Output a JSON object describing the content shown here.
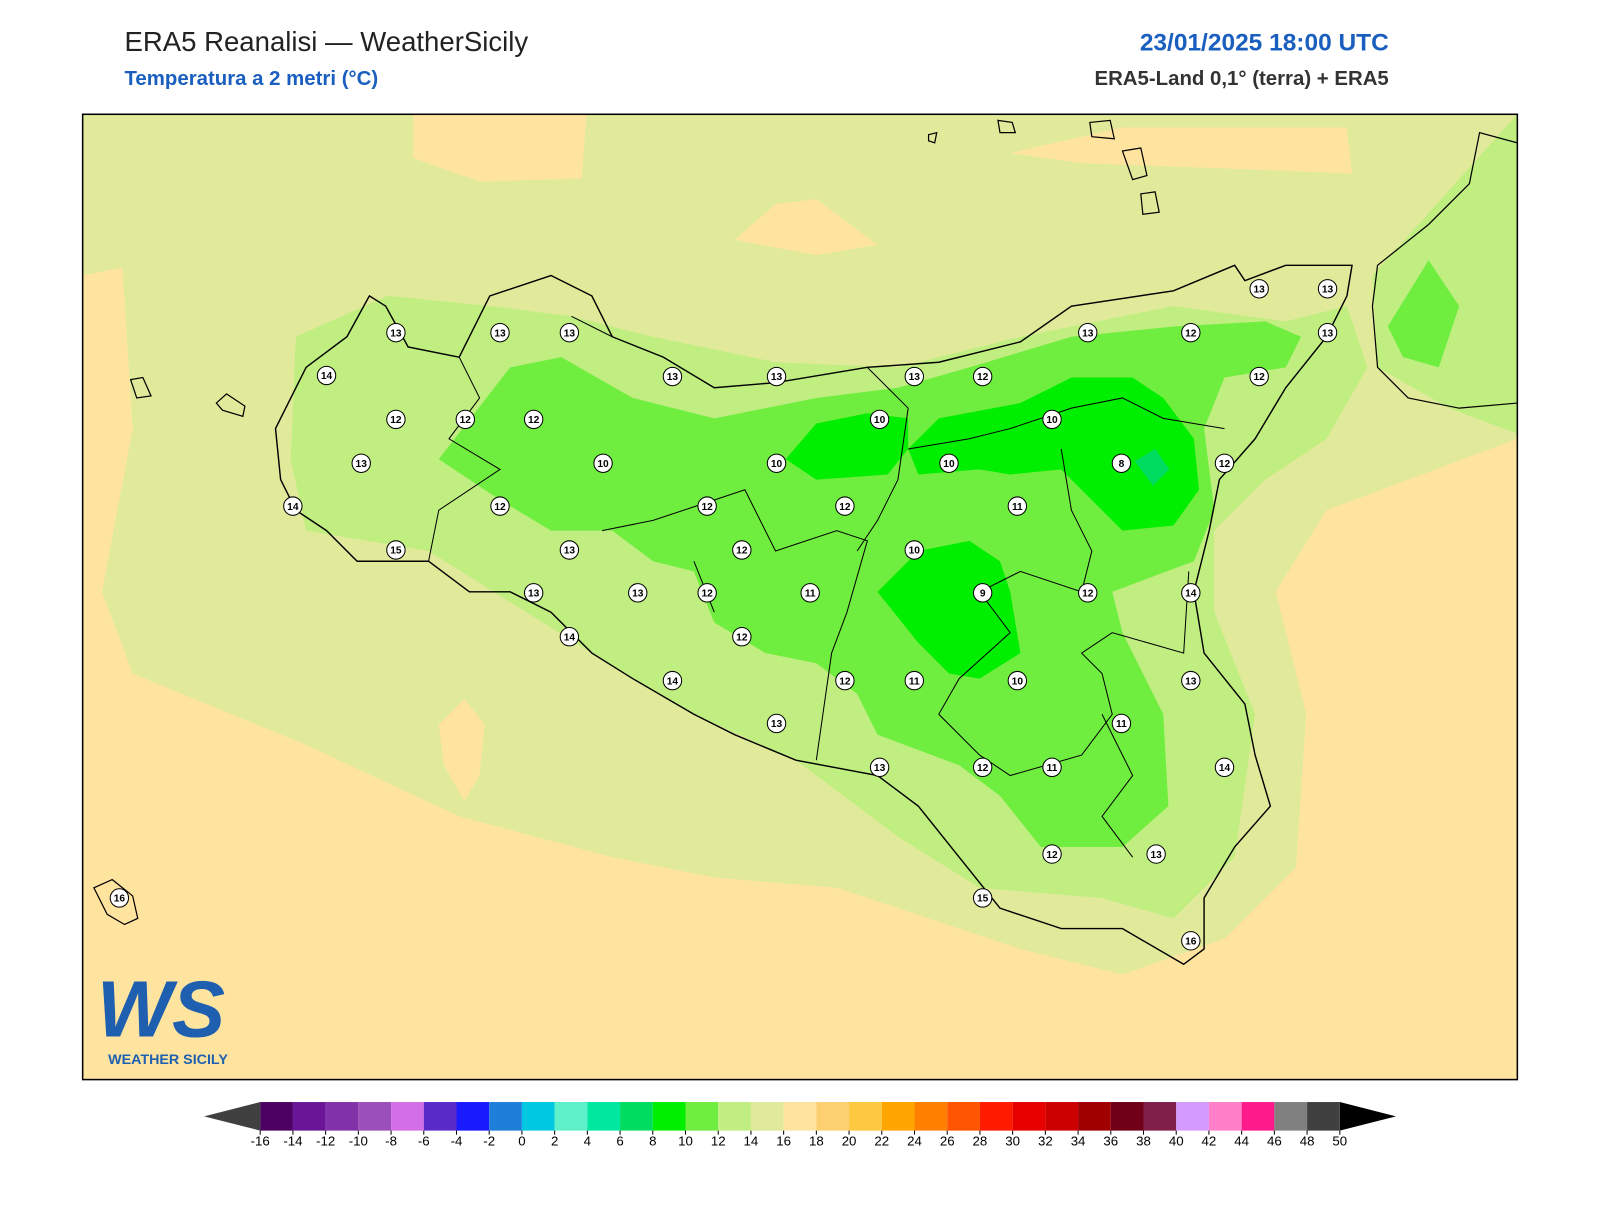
{
  "header": {
    "title": "ERA5 Reanalisi — WeatherSicily",
    "subtitle": "Temperatura a 2 metri (°C)",
    "datetime": "23/01/2025 18:00 UTC",
    "source": "ERA5-Land 0,1° (terra) + ERA5"
  },
  "logo": {
    "mark": "WS",
    "text": "WEATHER SICILY"
  },
  "stations": [
    13,
    13,
    13,
    14,
    12,
    12,
    12,
    13,
    14,
    15,
    12,
    13,
    13,
    13,
    13,
    13,
    10,
    12,
    12,
    12,
    14,
    12,
    14,
    13,
    11,
    12,
    10,
    10,
    13,
    12,
    10,
    10,
    13,
    12,
    13,
    13,
    13,
    12,
    8,
    12,
    11,
    10,
    9,
    12,
    14,
    12,
    11,
    10,
    13,
    11,
    14,
    13,
    12,
    11,
    12,
    13,
    15,
    16,
    16
  ],
  "colorbar": {
    "ticks": [
      -16,
      -14,
      -12,
      -10,
      -8,
      -6,
      -4,
      -2,
      0,
      2,
      4,
      6,
      8,
      10,
      12,
      14,
      16,
      18,
      20,
      22,
      24,
      26,
      28,
      30,
      32,
      34,
      36,
      38,
      40,
      42,
      44,
      46,
      48,
      50
    ],
    "colors": [
      "#4b0062",
      "#6a1597",
      "#8232a8",
      "#9b4fb8",
      "#d46ee6",
      "#5a2bc8",
      "#1a1aff",
      "#1f7fd8",
      "#00c8e0",
      "#5ef0c8",
      "#00e8a0",
      "#00dd60",
      "#00ee00",
      "#70ee40",
      "#c0ee80",
      "#e0ea9a",
      "#ffe4a0",
      "#fccf70",
      "#fec840",
      "#ffa500",
      "#ff8000",
      "#ff5500",
      "#ff1a00",
      "#e60000",
      "#cc0000",
      "#a00000",
      "#700018",
      "#80204a",
      "#d49aff",
      "#ff80c8",
      "#ff1a8c",
      "#808080",
      "#404040"
    ],
    "under_color": "#404040",
    "over_color": "#000000"
  }
}
